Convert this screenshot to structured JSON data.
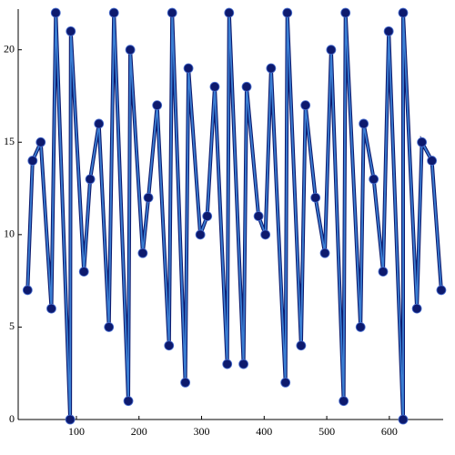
{
  "chart_data": {
    "type": "line",
    "x": [
      22,
      30,
      43,
      60,
      67,
      90,
      91,
      112,
      122,
      136,
      152,
      160,
      183,
      186,
      206,
      215,
      229,
      248,
      253,
      274,
      279,
      298,
      309,
      321,
      341,
      344,
      367,
      372,
      391,
      402,
      411,
      434,
      437,
      459,
      466,
      482,
      497,
      507,
      527,
      530,
      554,
      559,
      575,
      590,
      599,
      622,
      622,
      644,
      652,
      668,
      683
    ],
    "series": [
      {
        "color": "#3b7fd4",
        "marker_color": "#0d1a6e",
        "values": [
          7,
          14,
          15,
          6,
          22,
          0,
          21,
          8,
          13,
          16,
          5,
          22,
          1,
          20,
          9,
          12,
          17,
          4,
          22,
          2,
          19,
          10,
          11,
          18,
          3,
          22,
          3,
          18,
          11,
          10,
          19,
          2,
          22,
          4,
          17,
          12,
          9,
          20,
          1,
          22,
          5,
          16,
          13,
          8,
          21,
          0,
          22,
          6,
          15,
          14,
          7
        ]
      }
    ],
    "xlim": [
      7,
      686
    ],
    "ylim": [
      0,
      22.2
    ],
    "xticks": [
      100,
      200,
      300,
      400,
      500,
      600
    ],
    "yticks": [
      0,
      5,
      10,
      15,
      20
    ]
  }
}
